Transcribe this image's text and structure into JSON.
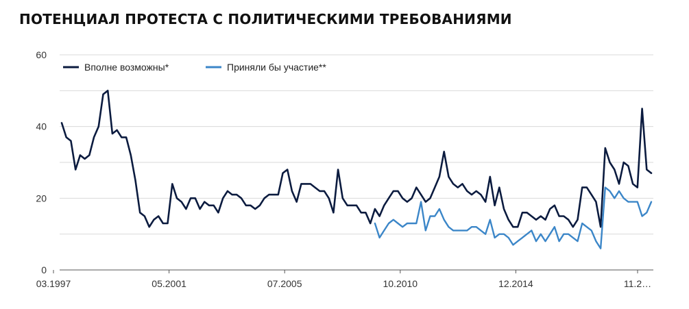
{
  "chart_data": {
    "type": "line",
    "title": "ПОТЕНЦИАЛ ПРОТЕСТА С ПОЛИТИЧЕСКИМИ ТРЕБОВАНИЯМИ",
    "xlabel": "",
    "ylabel": "",
    "x_tick_labels": [
      "03.1997",
      "05.2001",
      "07.2005",
      "10.2010",
      "12.2014",
      "11.2…"
    ],
    "y_ticks": [
      0,
      20,
      40,
      60
    ],
    "ylim": [
      0,
      60
    ],
    "grid": true,
    "legend_position": "top-left",
    "colors": {
      "series1": "#0b1b3f",
      "series2": "#3b86c8",
      "grid": "#d9d9d9",
      "axis": "#555555"
    },
    "series": [
      {
        "name": "Вполне возможны*",
        "values": [
          41,
          37,
          36,
          28,
          32,
          31,
          32,
          37,
          40,
          49,
          50,
          38,
          39,
          37,
          37,
          32,
          25,
          16,
          15,
          12,
          14,
          15,
          13,
          13,
          24,
          20,
          19,
          17,
          20,
          20,
          17,
          19,
          18,
          18,
          16,
          20,
          22,
          21,
          21,
          20,
          18,
          18,
          17,
          18,
          20,
          21,
          21,
          21,
          27,
          28,
          22,
          19,
          24,
          24,
          24,
          23,
          22,
          22,
          20,
          16,
          28,
          20,
          18,
          18,
          18,
          16,
          16,
          13,
          17,
          15,
          18,
          20,
          22,
          22,
          20,
          19,
          20,
          23,
          21,
          19,
          20,
          23,
          26,
          33,
          26,
          24,
          23,
          24,
          22,
          21,
          22,
          21,
          19,
          26,
          18,
          23,
          17,
          14,
          12,
          12,
          16,
          16,
          15,
          14,
          15,
          14,
          17,
          18,
          15,
          15,
          14,
          12,
          14,
          23,
          23,
          21,
          19,
          12,
          34,
          30,
          28,
          24,
          30,
          29,
          24,
          23,
          45,
          28,
          27
        ]
      },
      {
        "name": "Приняли бы участие**",
        "values": [
          null,
          null,
          null,
          null,
          null,
          null,
          null,
          null,
          null,
          null,
          null,
          null,
          null,
          null,
          null,
          null,
          null,
          null,
          null,
          null,
          null,
          null,
          null,
          null,
          null,
          null,
          null,
          null,
          null,
          null,
          null,
          null,
          null,
          null,
          null,
          null,
          null,
          null,
          null,
          null,
          null,
          null,
          null,
          null,
          null,
          null,
          null,
          null,
          null,
          null,
          null,
          null,
          null,
          null,
          null,
          null,
          null,
          null,
          null,
          null,
          null,
          null,
          null,
          null,
          null,
          null,
          null,
          null,
          13,
          9,
          11,
          13,
          14,
          13,
          12,
          13,
          13,
          13,
          19,
          11,
          15,
          15,
          17,
          14,
          12,
          11,
          11,
          11,
          11,
          12,
          12,
          11,
          10,
          14,
          9,
          10,
          10,
          9,
          7,
          8,
          9,
          10,
          11,
          8,
          10,
          8,
          10,
          12,
          8,
          10,
          10,
          9,
          8,
          13,
          12,
          11,
          8,
          6,
          23,
          22,
          20,
          22,
          20,
          19,
          19,
          19,
          15,
          16,
          19
        ]
      }
    ]
  }
}
